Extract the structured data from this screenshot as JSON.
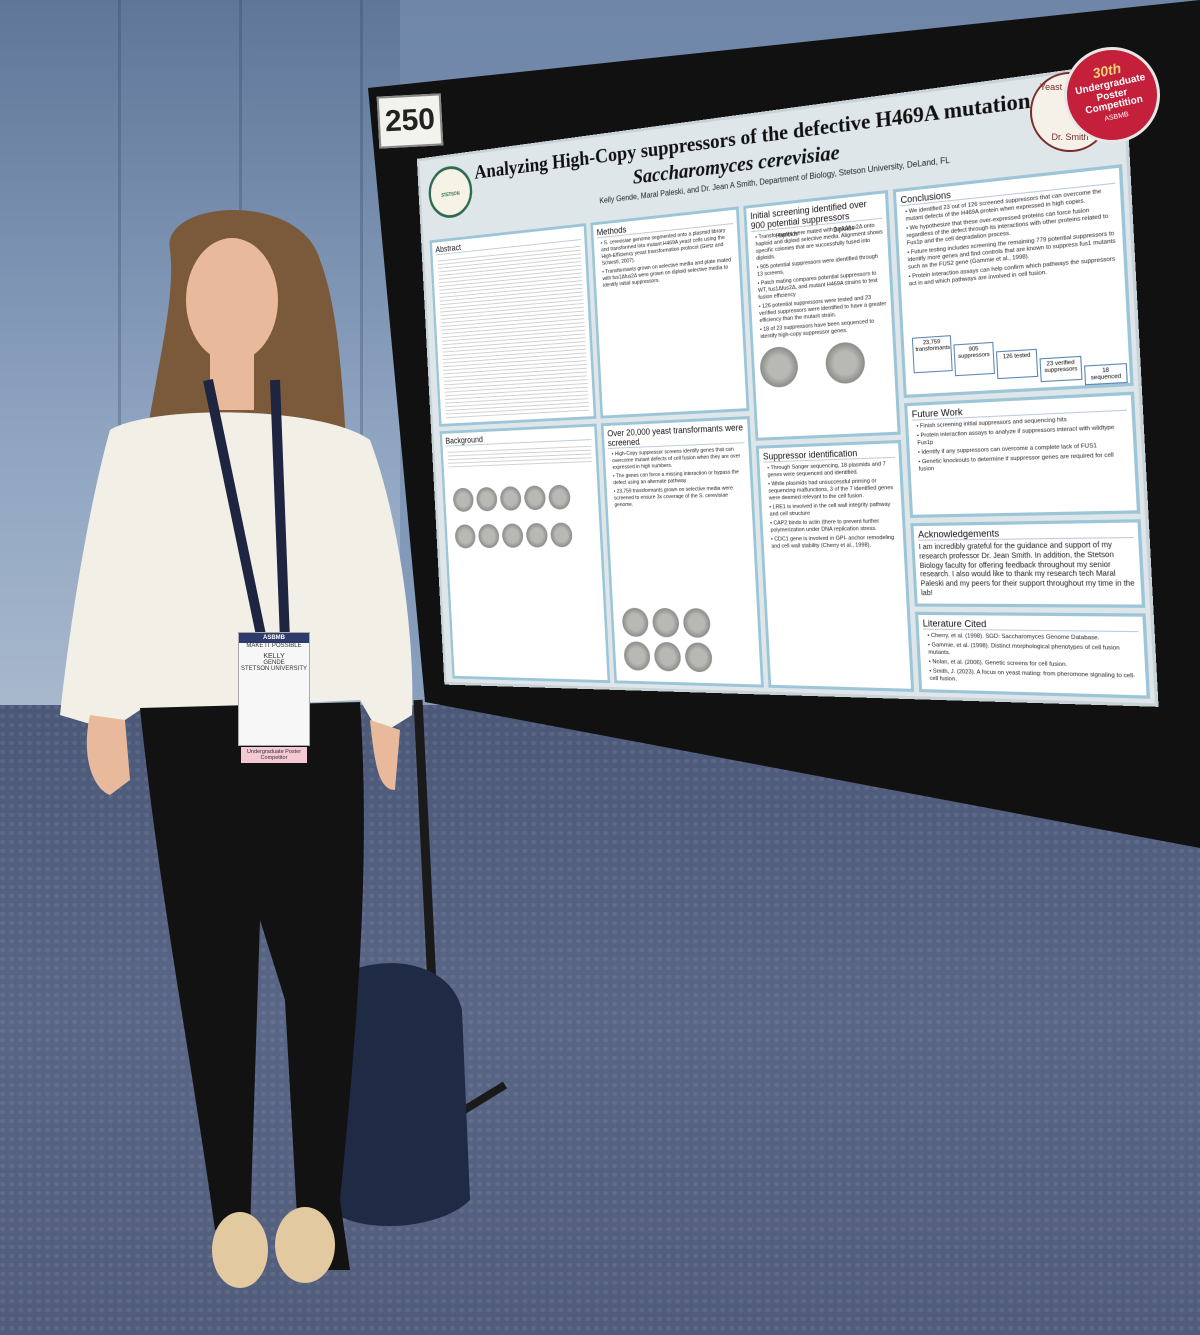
{
  "board_number": "250",
  "ribbon": {
    "ordinal": "30th",
    "text": "Undergraduate Poster Competition",
    "org": "ASBMB"
  },
  "stamp": {
    "top": "Yeast Genetics",
    "bottom": "Dr. Smith"
  },
  "badge": {
    "org": "ASBMB",
    "slogan": "MAKE IT POSSIBLE",
    "first_name": "KELLY",
    "last_name": "GENDE",
    "school": "STETSON UNIVERSITY",
    "ribbon": "Undergraduate Poster Competitor"
  },
  "poster": {
    "logo": "STETSON UNIVERSITY",
    "title_line1": "Analyzing High-Copy suppressors of the defective H469A mutation in",
    "title_line2": "Saccharomyces cerevisiae",
    "authors": "Kelly Gende, Maral Paleski, and Dr. Jean A Smith, Department of Biology, Stetson University, DeLand, FL",
    "sections": [
      {
        "heading": "Abstract",
        "bullets": []
      },
      {
        "heading": "Methods",
        "bullets": [
          "S. cerevisiae genome segmented onto a plasmid library and transformed into mutant H469A yeast cells using the High-Efficiency yeast transformation protocol (Gietz and Schiestl, 2007).",
          "Transformants grown on selective media and plate mated with fus1Δfus2Δ were grown on diploid selective media to identify initial suppressors."
        ]
      },
      {
        "heading": "Initial screening identified over 900 potential suppressors",
        "bullets": [
          "Transformants were mated with fus1Δfus2Δ onto haploid and diploid selective media. Alignment shows specific colonies that are successfully fused into diploids.",
          "905 potential suppressors were identified through 13 screens.",
          "Patch mating compares potential suppressors to WT, fus1Δfus2Δ, and mutant H469A strains to test fusion efficiency",
          "126 potential suppressors were tested and 23 verified suppressors were identified to have a greater efficiency than the mutant strain.",
          "18 of 23 suppressors have been sequenced to identify high-copy suppressor genes."
        ]
      },
      {
        "heading": "Conclusions",
        "bullets": [
          "We identified 23 out of 126 screened suppressors that can overcome the mutant defects of the H469A protein when expressed in high copies.",
          "We hypothesize that these over-expressed proteins can force fusion regardless of the defect through its interactions with other proteins related to Fus1p and the cell degradation process.",
          "Future testing includes screening the remaining 779 potential suppressors to identify more genes and find controls that are known to suppress fus1 mutants such as the FUS2 gene (Gammie et al., 1998).",
          "Protein interaction assays can help confirm which pathways the suppressors act in and which pathways are involved in cell fusion."
        ]
      },
      {
        "heading": "Background",
        "bullets": []
      },
      {
        "heading": "Over 20,000 yeast transformants were screened",
        "bullets": [
          "High-Copy suppressor screens identify genes that can overcome mutant defects of cell fusion when they are over expressed in high numbers.",
          "The genes can force a missing interaction or bypass the defect using an alternate pathway",
          "23,759 transformants grown on selective media were screened to ensure 3x coverage of the S. cerevisiae genome."
        ]
      },
      {
        "heading": "Suppressor identification",
        "bullets": [
          "Through Sanger sequencing, 18 plasmids and 7 genes were sequenced and identified.",
          "While plasmids had unsuccessful priming or sequencing malfunctions, 3 of the 7 identified genes were deemed relevant to the cell fusion.",
          "LRE1 is involved in the cell wall integrity pathway and cell structure",
          "CAP2 binds to actin (there to prevent further polymerization under DNA replication stress.",
          "CDC1 gene is involved in GPI- anchor remodeling and cell wall stability (Cherry et al., 1998)."
        ]
      },
      {
        "heading": "Future Work",
        "bullets": [
          "Finish screening initial suppressors and sequencing hits",
          "Protein interaction assays to analyze if suppressors interact with wildtype Fus1p",
          "Identify if any suppressors can overcome a complete lack of FUS1",
          "Genetic knockouts to determine if suppressor genes are required for cell fusion"
        ]
      },
      {
        "heading": "Acknowledgements",
        "bullets": [
          "I am incredibly grateful for the guidance and support of my research professor Dr. Jean Smith. In addition, the Stetson Biology faculty for offering feedback throughout my senior research. I also would like to thank my research tech Maral Paleski and my peers for their support throughout my time in the lab!"
        ]
      },
      {
        "heading": "Literature Cited",
        "bullets": [
          "Cherry, et al. (1998). SGD: Saccharomyces Genome Database.",
          "Gammie, et al. (1998). Distinct morphological phenotypes of cell fusion mutants.",
          "Nolan, et al. (2006). Genetic screens for cell fusion.",
          "Smith, J. (2023). A focus on yeast mating: from pheromone signaling to cell-cell fusion."
        ]
      }
    ],
    "screen_labels": [
      "Haploids",
      "Diploids"
    ],
    "funnel": [
      "23,759 transformants",
      "905 suppressors",
      "126 tested",
      "23 verified suppressors",
      "18 sequenced"
    ]
  }
}
